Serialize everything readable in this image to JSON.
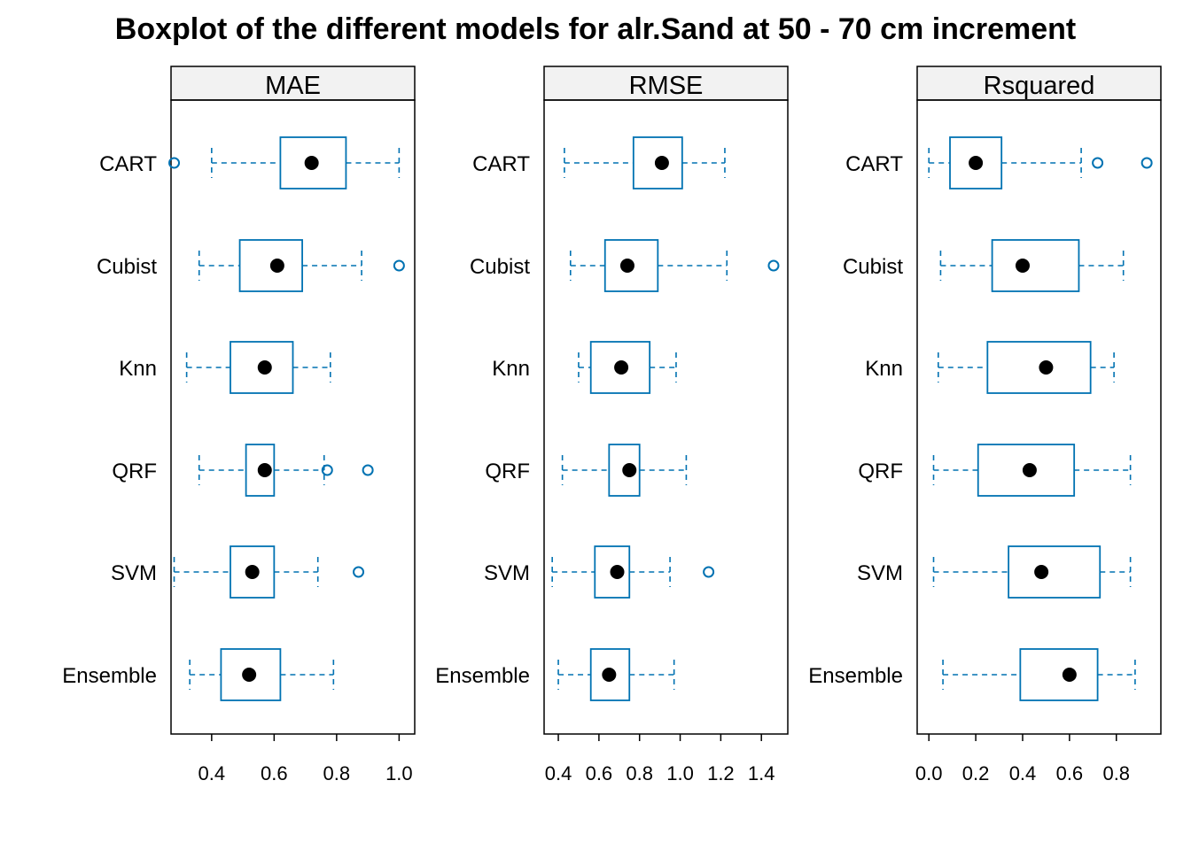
{
  "chart_data": {
    "type": "boxplot",
    "title": "Boxplot of the different models for alr.Sand at 50 - 70 cm increment",
    "categories": [
      "CART",
      "Cubist",
      "Knn",
      "QRF",
      "SVM",
      "Ensemble"
    ],
    "colors": {
      "box": "#0072B2",
      "median": "#000000",
      "strip": "#f2f2f2",
      "frame": "#000000"
    },
    "panels": [
      {
        "name": "MAE",
        "xlim": [
          0.27,
          1.05
        ],
        "ticks": [
          0.4,
          0.6,
          0.8,
          1.0
        ],
        "tick_labels": [
          "0.4",
          "0.6",
          "0.8",
          "1.0"
        ],
        "boxes": [
          {
            "category": "CART",
            "whisker_low": 0.4,
            "q1": 0.62,
            "median": 0.72,
            "q3": 0.83,
            "whisker_high": 1.0,
            "outliers": [
              0.28
            ]
          },
          {
            "category": "Cubist",
            "whisker_low": 0.36,
            "q1": 0.49,
            "median": 0.61,
            "q3": 0.69,
            "whisker_high": 0.88,
            "outliers": [
              1.0
            ]
          },
          {
            "category": "Knn",
            "whisker_low": 0.32,
            "q1": 0.46,
            "median": 0.57,
            "q3": 0.66,
            "whisker_high": 0.78,
            "outliers": []
          },
          {
            "category": "QRF",
            "whisker_low": 0.36,
            "q1": 0.51,
            "median": 0.57,
            "q3": 0.6,
            "whisker_high": 0.76,
            "outliers": [
              0.77,
              0.9
            ]
          },
          {
            "category": "SVM",
            "whisker_low": 0.28,
            "q1": 0.46,
            "median": 0.53,
            "q3": 0.6,
            "whisker_high": 0.74,
            "outliers": [
              0.87
            ]
          },
          {
            "category": "Ensemble",
            "whisker_low": 0.33,
            "q1": 0.43,
            "median": 0.52,
            "q3": 0.62,
            "whisker_high": 0.79,
            "outliers": []
          }
        ]
      },
      {
        "name": "RMSE",
        "xlim": [
          0.33,
          1.53
        ],
        "ticks": [
          0.4,
          0.6,
          0.8,
          1.0,
          1.2,
          1.4
        ],
        "tick_labels": [
          "0.4",
          "0.6",
          "0.8",
          "1.0",
          "1.2",
          "1.4"
        ],
        "boxes": [
          {
            "category": "CART",
            "whisker_low": 0.43,
            "q1": 0.77,
            "median": 0.91,
            "q3": 1.01,
            "whisker_high": 1.22,
            "outliers": []
          },
          {
            "category": "Cubist",
            "whisker_low": 0.46,
            "q1": 0.63,
            "median": 0.74,
            "q3": 0.89,
            "whisker_high": 1.23,
            "outliers": [
              1.46
            ]
          },
          {
            "category": "Knn",
            "whisker_low": 0.5,
            "q1": 0.56,
            "median": 0.71,
            "q3": 0.85,
            "whisker_high": 0.98,
            "outliers": []
          },
          {
            "category": "QRF",
            "whisker_low": 0.42,
            "q1": 0.65,
            "median": 0.75,
            "q3": 0.8,
            "whisker_high": 1.03,
            "outliers": []
          },
          {
            "category": "SVM",
            "whisker_low": 0.37,
            "q1": 0.58,
            "median": 0.69,
            "q3": 0.75,
            "whisker_high": 0.95,
            "outliers": [
              1.14
            ]
          },
          {
            "category": "Ensemble",
            "whisker_low": 0.4,
            "q1": 0.56,
            "median": 0.65,
            "q3": 0.75,
            "whisker_high": 0.97,
            "outliers": []
          }
        ]
      },
      {
        "name": "Rsquared",
        "xlim": [
          -0.05,
          0.99
        ],
        "ticks": [
          0.0,
          0.2,
          0.4,
          0.6,
          0.8
        ],
        "tick_labels": [
          "0.0",
          "0.2",
          "0.4",
          "0.6",
          "0.8"
        ],
        "boxes": [
          {
            "category": "CART",
            "whisker_low": 0.0,
            "q1": 0.09,
            "median": 0.2,
            "q3": 0.31,
            "whisker_high": 0.65,
            "outliers": [
              0.72,
              0.93
            ]
          },
          {
            "category": "Cubist",
            "whisker_low": 0.05,
            "q1": 0.27,
            "median": 0.4,
            "q3": 0.64,
            "whisker_high": 0.83,
            "outliers": []
          },
          {
            "category": "Knn",
            "whisker_low": 0.04,
            "q1": 0.25,
            "median": 0.5,
            "q3": 0.69,
            "whisker_high": 0.79,
            "outliers": []
          },
          {
            "category": "QRF",
            "whisker_low": 0.02,
            "q1": 0.21,
            "median": 0.43,
            "q3": 0.62,
            "whisker_high": 0.86,
            "outliers": []
          },
          {
            "category": "SVM",
            "whisker_low": 0.02,
            "q1": 0.34,
            "median": 0.48,
            "q3": 0.73,
            "whisker_high": 0.86,
            "outliers": []
          },
          {
            "category": "Ensemble",
            "whisker_low": 0.06,
            "q1": 0.39,
            "median": 0.6,
            "q3": 0.72,
            "whisker_high": 0.88,
            "outliers": []
          }
        ]
      }
    ]
  }
}
